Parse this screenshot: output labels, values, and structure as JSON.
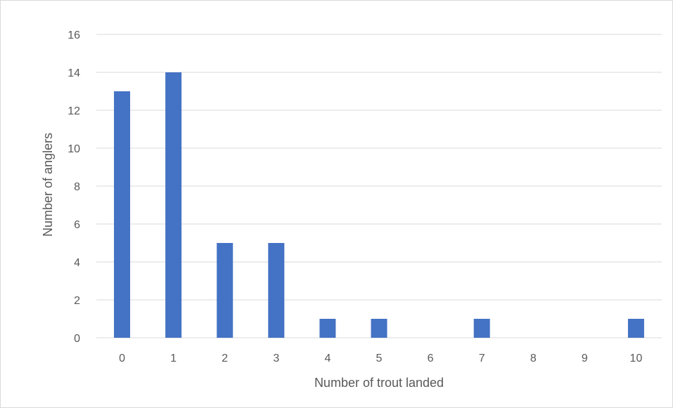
{
  "chart_data": {
    "type": "bar",
    "categories": [
      "0",
      "1",
      "2",
      "3",
      "4",
      "5",
      "6",
      "7",
      "8",
      "9",
      "10"
    ],
    "values": [
      13,
      14,
      5,
      5,
      1,
      1,
      0,
      1,
      0,
      0,
      1
    ],
    "title": "",
    "xlabel": "Number of trout landed",
    "ylabel": "Number of anglers",
    "ylim": [
      0,
      16
    ],
    "yticks": [
      0,
      2,
      4,
      6,
      8,
      10,
      12,
      14,
      16
    ],
    "grid": true,
    "legend": "none",
    "bar_color": "#4472C4"
  }
}
